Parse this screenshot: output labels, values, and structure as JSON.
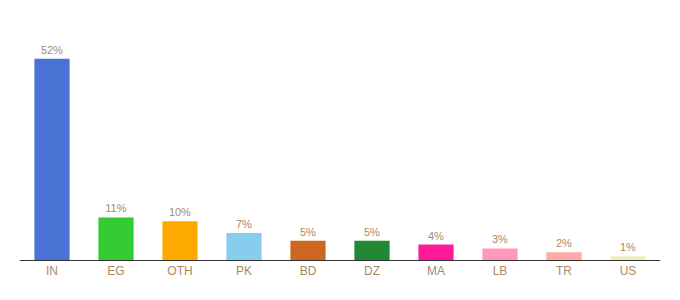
{
  "chart_data": {
    "type": "bar",
    "categories": [
      "IN",
      "EG",
      "OTH",
      "PK",
      "BD",
      "DZ",
      "MA",
      "LB",
      "TR",
      "US"
    ],
    "values": [
      52,
      11,
      10,
      7,
      5,
      5,
      4,
      3,
      2,
      1
    ],
    "value_labels": [
      "52%",
      "11%",
      "10%",
      "7%",
      "5%",
      "5%",
      "4%",
      "3%",
      "2%",
      "1%"
    ],
    "colors": [
      "#4a72d4",
      "#33cc33",
      "#ffaa00",
      "#88ccee",
      "#cc6622",
      "#228833",
      "#ff1a99",
      "#ff99bb",
      "#ffaaaa",
      "#eeeebb"
    ],
    "data_labels": true,
    "ylim": [
      0,
      62
    ],
    "grid": false,
    "tick_labels": "x"
  }
}
